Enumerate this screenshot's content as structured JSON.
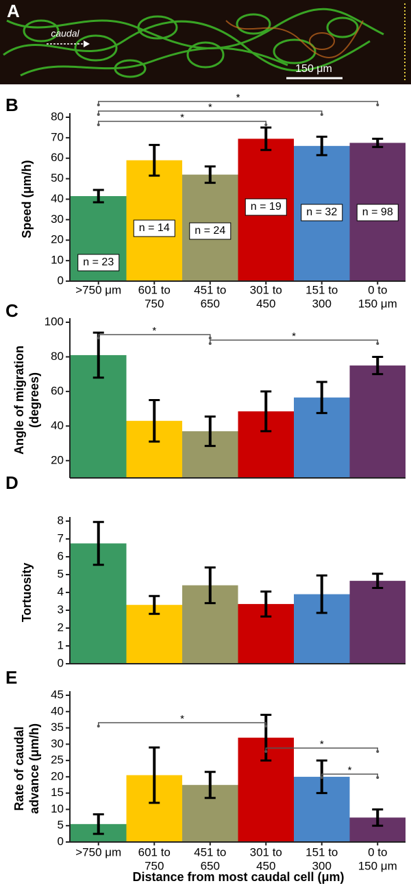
{
  "panel_a": {
    "label": "A",
    "arrow_label": "caudal",
    "scale_bar": "150 μm"
  },
  "x_label": "Distance from most caudal cell (μm)",
  "chart_data": [
    {
      "type": "bar",
      "panel_label": "B",
      "ylabel": [
        "Speed (μm/h)"
      ],
      "categories": [
        [
          ">750 μm"
        ],
        [
          "601 to",
          "750"
        ],
        [
          "451 to",
          "650"
        ],
        [
          "301 to",
          "450"
        ],
        [
          "151 to",
          "300"
        ],
        [
          "0 to",
          "150 μm"
        ]
      ],
      "colors": [
        "#3a9a62",
        "#ffc800",
        "#999966",
        "#cc0000",
        "#4a86c8",
        "#663366"
      ],
      "values": [
        41.5,
        59,
        52,
        69.5,
        66,
        67.5
      ],
      "errors": [
        3,
        7.5,
        4,
        5.5,
        4.5,
        2
      ],
      "n_labels": [
        "n = 23",
        "n = 14",
        "n = 24",
        "n = 19",
        "n = 32",
        "n = 98"
      ],
      "significance": [
        {
          "from": 0,
          "to": 3,
          "label": "*"
        },
        {
          "from": 0,
          "to": 4,
          "label": "*"
        },
        {
          "from": 0,
          "to": 5,
          "label": "*"
        }
      ],
      "ylim": [
        0,
        80
      ],
      "yticks": [
        0,
        10,
        20,
        30,
        40,
        50,
        60,
        70,
        80
      ]
    },
    {
      "type": "bar",
      "panel_label": "C",
      "ylabel": [
        "Angle of migration",
        "(degrees)"
      ],
      "categories": [
        null,
        null,
        null,
        null,
        null,
        null
      ],
      "colors": [
        "#3a9a62",
        "#ffc800",
        "#999966",
        "#cc0000",
        "#4a86c8",
        "#663366"
      ],
      "values": [
        81,
        43,
        37,
        48.5,
        56.5,
        75
      ],
      "errors": [
        13,
        12,
        8.5,
        11.5,
        9,
        5
      ],
      "significance": [
        {
          "from": 0,
          "to": 2,
          "label": "*"
        },
        {
          "from": 2,
          "to": 5,
          "label": "*"
        }
      ],
      "ylim": [
        10,
        100
      ],
      "yticks": [
        20,
        40,
        60,
        80,
        100
      ]
    },
    {
      "type": "bar",
      "panel_label": "D",
      "ylabel": [
        "Tortuosity"
      ],
      "categories": [
        null,
        null,
        null,
        null,
        null,
        null
      ],
      "colors": [
        "#3a9a62",
        "#ffc800",
        "#999966",
        "#cc0000",
        "#4a86c8",
        "#663366"
      ],
      "values": [
        6.75,
        3.3,
        4.4,
        3.35,
        3.9,
        4.65
      ],
      "errors": [
        1.2,
        0.5,
        1.0,
        0.7,
        1.05,
        0.4
      ],
      "ylim": [
        0,
        8
      ],
      "yticks": [
        0,
        1,
        2,
        3,
        4,
        5,
        6,
        7,
        8
      ]
    },
    {
      "type": "bar",
      "panel_label": "E",
      "ylabel": [
        "Rate of caudal",
        "advance (μm/h)"
      ],
      "categories": [
        [
          ">750 μm"
        ],
        [
          "601 to",
          "750"
        ],
        [
          "451 to",
          "650"
        ],
        [
          "301 to",
          "450"
        ],
        [
          "151 to",
          "300"
        ],
        [
          "0 to",
          "150 μm"
        ]
      ],
      "colors": [
        "#3a9a62",
        "#ffc800",
        "#999966",
        "#cc0000",
        "#4a86c8",
        "#663366"
      ],
      "values": [
        5.5,
        20.5,
        17.5,
        32,
        20,
        7.5
      ],
      "errors": [
        3,
        8.5,
        4,
        7,
        5,
        2.5
      ],
      "significance": [
        {
          "from": 0,
          "to": 3,
          "label": "*"
        },
        {
          "from": 3,
          "to": 5,
          "label": "*"
        },
        {
          "from": 4,
          "to": 5,
          "label": "*"
        }
      ],
      "ylim": [
        0,
        45
      ],
      "yticks": [
        0,
        5,
        10,
        15,
        20,
        25,
        30,
        35,
        40,
        45
      ]
    }
  ]
}
